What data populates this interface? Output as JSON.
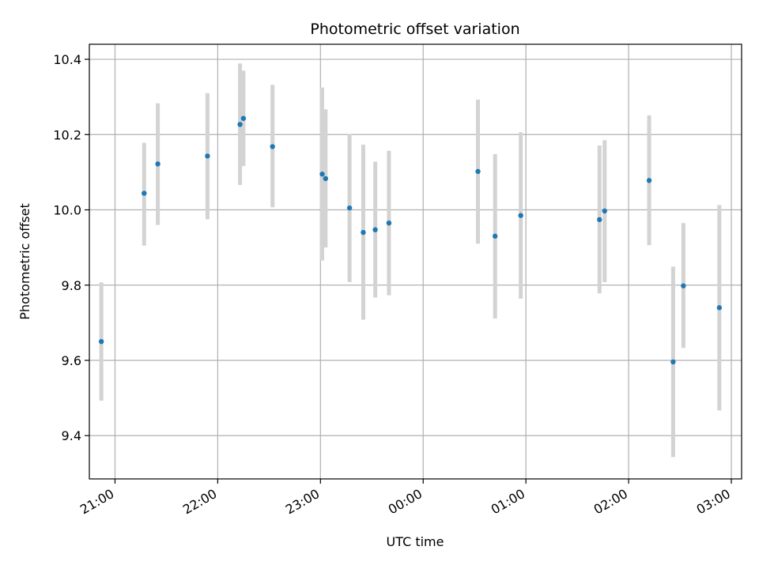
{
  "chart_data": {
    "type": "scatter",
    "title": "Photometric offset variation",
    "xlabel": "UTC time",
    "ylabel": "Photometric offset",
    "x_axis_kind": "time (HH:MM)",
    "xlim": [
      "20:45",
      "03:06"
    ],
    "ylim": [
      9.285,
      10.44
    ],
    "grid": true,
    "x_ticks": [
      "21:00",
      "22:00",
      "23:00",
      "00:00",
      "01:00",
      "02:00",
      "03:00"
    ],
    "y_ticks": [
      9.4,
      9.6,
      9.8,
      10.0,
      10.2,
      10.4
    ],
    "y_tick_labels": [
      "9.4",
      "9.6",
      "9.8",
      "10.0",
      "10.2",
      "10.4"
    ],
    "colors": {
      "points": "#1f77b4",
      "error_bars": "#d3d3d3",
      "grid": "#b0b0b0"
    },
    "points": [
      {
        "time": "20:52",
        "y": 9.65,
        "low": 9.493,
        "high": 9.807
      },
      {
        "time": "21:17",
        "y": 10.044,
        "low": 9.905,
        "high": 10.178
      },
      {
        "time": "21:25",
        "y": 10.122,
        "low": 9.96,
        "high": 10.283
      },
      {
        "time": "21:54",
        "y": 10.143,
        "low": 9.975,
        "high": 10.31
      },
      {
        "time": "22:13",
        "y": 10.227,
        "low": 10.066,
        "high": 10.389
      },
      {
        "time": "22:15",
        "y": 10.243,
        "low": 10.116,
        "high": 10.37
      },
      {
        "time": "22:32",
        "y": 10.168,
        "low": 10.007,
        "high": 10.332
      },
      {
        "time": "23:01",
        "y": 10.095,
        "low": 9.865,
        "high": 10.325
      },
      {
        "time": "23:03",
        "y": 10.083,
        "low": 9.9,
        "high": 10.267
      },
      {
        "time": "23:17",
        "y": 10.005,
        "low": 9.808,
        "high": 10.202
      },
      {
        "time": "23:25",
        "y": 9.94,
        "low": 9.708,
        "high": 10.173
      },
      {
        "time": "23:32",
        "y": 9.947,
        "low": 9.767,
        "high": 10.128
      },
      {
        "time": "23:40",
        "y": 9.965,
        "low": 9.773,
        "high": 10.157
      },
      {
        "time": "00:32",
        "y": 10.102,
        "low": 9.91,
        "high": 10.293
      },
      {
        "time": "00:42",
        "y": 9.93,
        "low": 9.711,
        "high": 10.148
      },
      {
        "time": "00:57",
        "y": 9.985,
        "low": 9.764,
        "high": 10.206
      },
      {
        "time": "01:43",
        "y": 9.974,
        "low": 9.778,
        "high": 10.171
      },
      {
        "time": "01:46",
        "y": 9.997,
        "low": 9.808,
        "high": 10.185
      },
      {
        "time": "02:12",
        "y": 10.078,
        "low": 9.906,
        "high": 10.251
      },
      {
        "time": "02:26",
        "y": 9.596,
        "low": 9.343,
        "high": 9.849
      },
      {
        "time": "02:32",
        "y": 9.798,
        "low": 9.633,
        "high": 9.965
      },
      {
        "time": "02:53",
        "y": 9.74,
        "low": 9.467,
        "high": 10.013
      }
    ]
  }
}
